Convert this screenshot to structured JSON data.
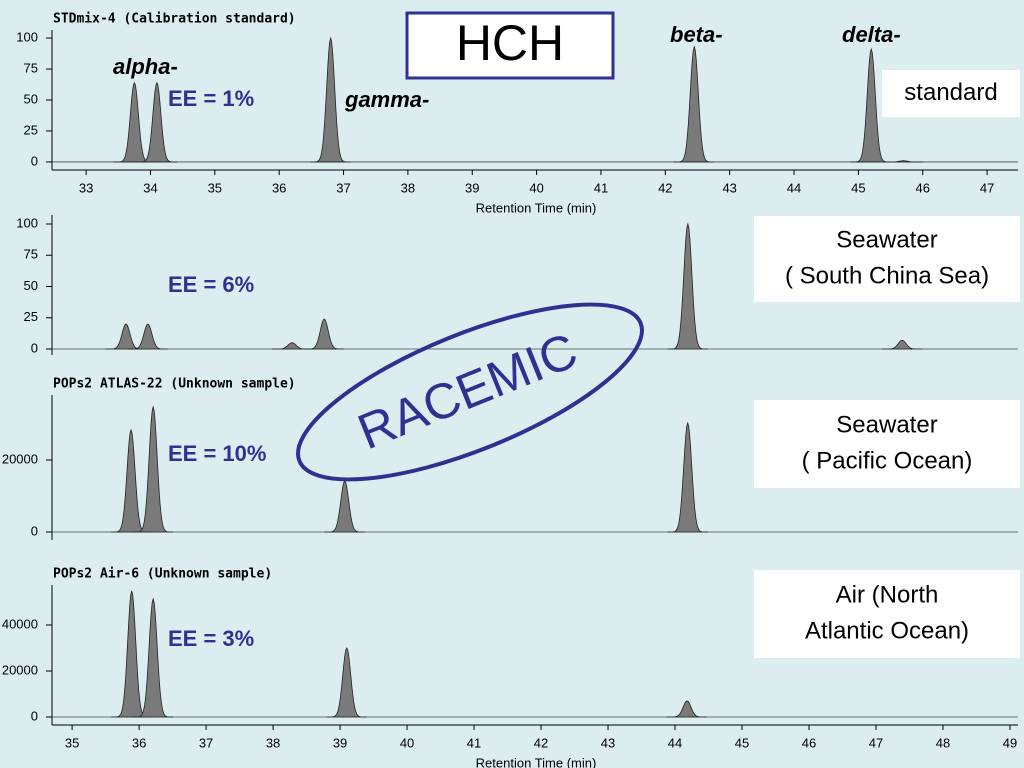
{
  "title": "HCH",
  "stamp": "RACEMIC",
  "compound_labels": [
    "alpha-",
    "gamma-",
    "beta-",
    "delta-"
  ],
  "chart_data": [
    {
      "type": "chromatogram",
      "title": "STDmix-4 (Calibration standard)",
      "x_label": "Retention Time (min)",
      "label": [
        "standard"
      ],
      "ee": "EE = 1%",
      "x": [
        33.75,
        34.1,
        36.8,
        42.45,
        45.2,
        45.7
      ],
      "values": [
        64,
        64,
        100,
        93,
        91,
        1
      ],
      "xlim": [
        32.47,
        47.48
      ],
      "xticks": [
        33,
        34,
        35,
        36,
        37,
        38,
        39,
        40,
        41,
        42,
        43,
        44,
        45,
        46,
        47
      ],
      "ylim": [
        -6.5,
        106.5
      ],
      "yticks": [
        0,
        25,
        50,
        75,
        100
      ],
      "color": "#7a7a7a"
    },
    {
      "type": "chromatogram",
      "label": [
        "Seawater",
        "( South China Sea)"
      ],
      "ee": "EE = 6%",
      "x": [
        33.62,
        33.96,
        36.2,
        36.7,
        42.35,
        45.68
      ],
      "values": [
        20,
        20,
        5,
        24,
        100,
        7
      ],
      "xlim": [
        32.47,
        47.48
      ],
      "ylim": [
        -4.8,
        107.2
      ],
      "yticks": [
        0,
        25,
        50,
        75,
        100
      ],
      "color": "#7a7a7a"
    },
    {
      "type": "chromatogram",
      "title": "POPs2 ATLAS-22 (Unknown sample)",
      "label": [
        "Seawater",
        "( Pacific Ocean)"
      ],
      "ee": "EE = 10%",
      "x": [
        35.88,
        36.21,
        39.07,
        44.19
      ],
      "values": [
        28333,
        34722,
        14167,
        30278
      ],
      "xlim": [
        34.7,
        49.12
      ],
      "ylim": [
        -2222,
        38056
      ],
      "yticks": [
        0,
        20000
      ],
      "color": "#7a7a7a"
    },
    {
      "type": "chromatogram",
      "title": "POPs2 Air-6 (Unknown sample)",
      "x_label": "Retention Time (min)",
      "label": [
        "Air (North",
        "Atlantic Ocean)"
      ],
      "ee": "EE = 3%",
      "x": [
        35.89,
        36.21,
        39.1,
        44.18
      ],
      "values": [
        54783,
        51304,
        30000,
        6957
      ],
      "xlim": [
        34.7,
        49.12
      ],
      "xticks": [
        35,
        36,
        37,
        38,
        39,
        40,
        41,
        42,
        43,
        44,
        45,
        46,
        47,
        48,
        49
      ],
      "ylim": [
        -3478,
        57391
      ],
      "yticks": [
        0,
        20000,
        40000
      ],
      "color": "#7a7a7a"
    }
  ]
}
